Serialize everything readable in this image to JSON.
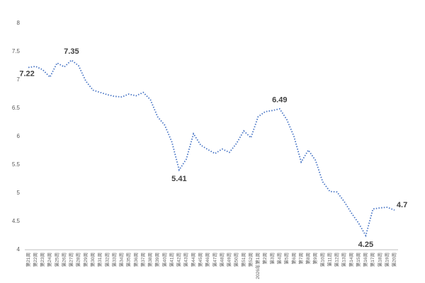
{
  "chart_data": {
    "type": "line",
    "categories": [
      "第21周",
      "第22周",
      "第23周",
      "第24周",
      "第25周",
      "第26周",
      "第27周",
      "第28周",
      "第29周",
      "第30周",
      "第31周",
      "第32周",
      "第33周",
      "第34周",
      "第35周",
      "第36周",
      "第37周",
      "第38周",
      "第39周",
      "第40周",
      "第41周",
      "第42周",
      "第43周",
      "第44周",
      "第45周",
      "第46周",
      "第47周",
      "第48周",
      "第49周",
      "第50周",
      "第51周",
      "第52周",
      "2026年第1周",
      "第2周",
      "第3周",
      "第4周",
      "第5周",
      "第6周",
      "第7周",
      "第8周",
      "第9周",
      "第10周",
      "第11周",
      "第12周",
      "第13周",
      "第14周",
      "第15周",
      "第16周",
      "第17周",
      "第18周",
      "第19周",
      "第20周"
    ],
    "series": [
      {
        "color": "#4472c4",
        "values": [
          7.22,
          7.24,
          7.18,
          7.05,
          7.3,
          7.23,
          7.35,
          7.25,
          6.98,
          6.82,
          6.78,
          6.74,
          6.71,
          6.7,
          6.75,
          6.72,
          6.78,
          6.65,
          6.35,
          6.2,
          5.9,
          5.41,
          5.6,
          6.05,
          5.85,
          5.77,
          5.7,
          5.78,
          5.72,
          5.88,
          6.1,
          5.98,
          6.35,
          6.44,
          6.46,
          6.49,
          6.3,
          6.0,
          5.55,
          5.76,
          5.58,
          5.2,
          5.03,
          5.02,
          4.85,
          4.65,
          4.47,
          4.25,
          4.72,
          4.74,
          4.75,
          4.7
        ],
        "value_labels": [
          "7.22",
          null,
          null,
          null,
          null,
          null,
          "7.35",
          null,
          null,
          null,
          null,
          null,
          null,
          null,
          null,
          null,
          null,
          null,
          null,
          null,
          null,
          "5.41",
          null,
          null,
          null,
          null,
          null,
          null,
          null,
          null,
          null,
          null,
          null,
          null,
          null,
          "6.49",
          null,
          null,
          null,
          null,
          null,
          null,
          null,
          null,
          null,
          null,
          null,
          "4.25",
          null,
          null,
          null,
          "4.7"
        ]
      }
    ],
    "ylim": [
      4,
      8
    ],
    "yticks": [
      4,
      4.5,
      5,
      5.5,
      6,
      6.5,
      7,
      7.5,
      8
    ],
    "grid": false
  }
}
